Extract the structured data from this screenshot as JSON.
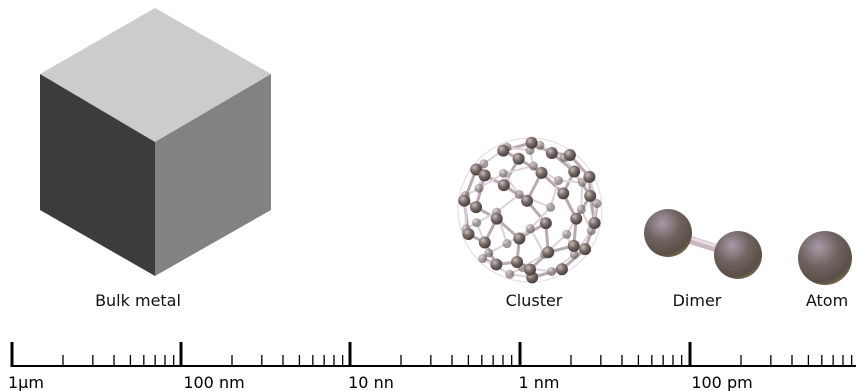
{
  "objects": {
    "bulk_metal": "Bulk metal",
    "cluster": "Cluster",
    "dimer": "Dimer",
    "atom": "Atom"
  },
  "scale": {
    "type": "logarithmic",
    "major_labels": [
      "1μm",
      "100 nm",
      "10 nn",
      "1 nm",
      "100 pm"
    ],
    "minor_ticks_per_decade": 8
  },
  "colors": {
    "cube_top": "#cccccc",
    "cube_left": "#3c3c3c",
    "cube_right": "#828282",
    "sphere_base": "#6e6360",
    "bond": "#c9b8c4",
    "axis": "#000000"
  }
}
